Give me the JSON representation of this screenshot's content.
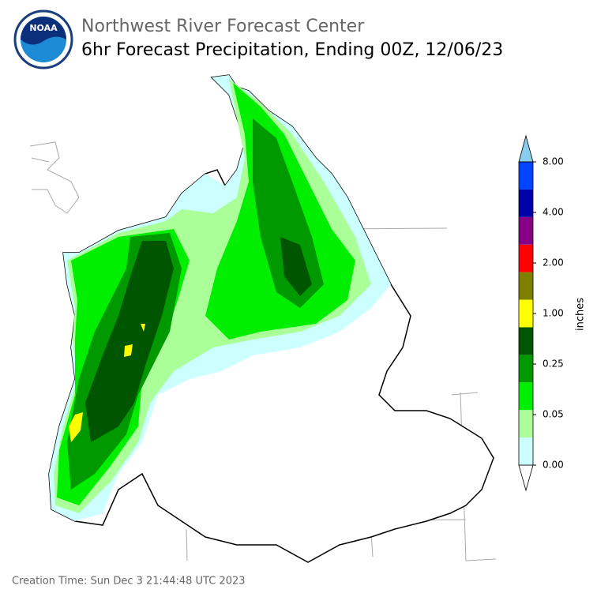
{
  "header": {
    "logo_text": "NOAA",
    "title": "Northwest River Forecast Center",
    "subtitle": "6hr Forecast Precipitation, Ending 00Z, 12/06/23"
  },
  "colorbar": {
    "label": "inches",
    "colors": [
      "#ffffff",
      "#ccffff",
      "#aaff99",
      "#00ee00",
      "#009900",
      "#005500",
      "#ffff00",
      "#808000",
      "#ff0000",
      "#880088",
      "#0000aa",
      "#0044ff",
      "#88ccee"
    ],
    "ticks": [
      {
        "value": 0,
        "label": "0.00"
      },
      {
        "value": 0.05,
        "label": "0.05"
      },
      {
        "value": 0.25,
        "label": "0.25"
      },
      {
        "value": 1,
        "label": "1.00"
      },
      {
        "value": 2,
        "label": "2.00"
      },
      {
        "value": 4,
        "label": "4.00"
      },
      {
        "value": 8,
        "label": "8.00"
      }
    ]
  },
  "footer": {
    "creation_time": "Creation Time: Sun Dec 3 21:44:48 UTC 2023"
  }
}
